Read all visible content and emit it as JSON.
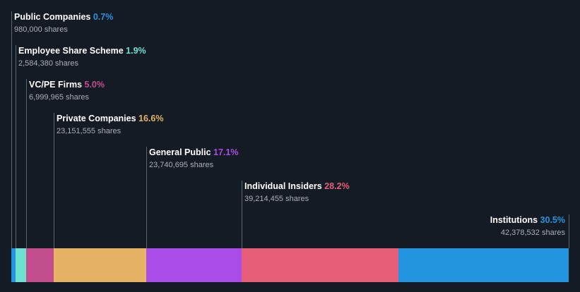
{
  "chart_data": {
    "type": "bar",
    "orientation": "horizontal-stacked",
    "unit_suffix": "shares",
    "series": [
      {
        "name": "Public Companies",
        "percent": 0.7,
        "percent_label": "0.7%",
        "shares": 980000,
        "shares_label": "980,000",
        "color": "#2394df"
      },
      {
        "name": "Employee Share Scheme",
        "percent": 1.9,
        "percent_label": "1.9%",
        "shares": 2584380,
        "shares_label": "2,584,380",
        "color": "#6ee0d0"
      },
      {
        "name": "VC/PE Firms",
        "percent": 5.0,
        "percent_label": "5.0%",
        "shares": 6999965,
        "shares_label": "6,999,965",
        "color": "#c24d8f"
      },
      {
        "name": "Private Companies",
        "percent": 16.6,
        "percent_label": "16.6%",
        "shares": 23151555,
        "shares_label": "23,151,555",
        "color": "#e6b366"
      },
      {
        "name": "General Public",
        "percent": 17.1,
        "percent_label": "17.1%",
        "shares": 23740695,
        "shares_label": "23,740,695",
        "color": "#a94ce8"
      },
      {
        "name": "Individual Insiders",
        "percent": 28.2,
        "percent_label": "28.2%",
        "shares": 39214455,
        "shares_label": "39,214,455",
        "color": "#e75e78"
      },
      {
        "name": "Institutions",
        "percent": 30.5,
        "percent_label": "30.5%",
        "shares": 42378532,
        "shares_label": "42,378,532",
        "color": "#2394df"
      }
    ]
  }
}
